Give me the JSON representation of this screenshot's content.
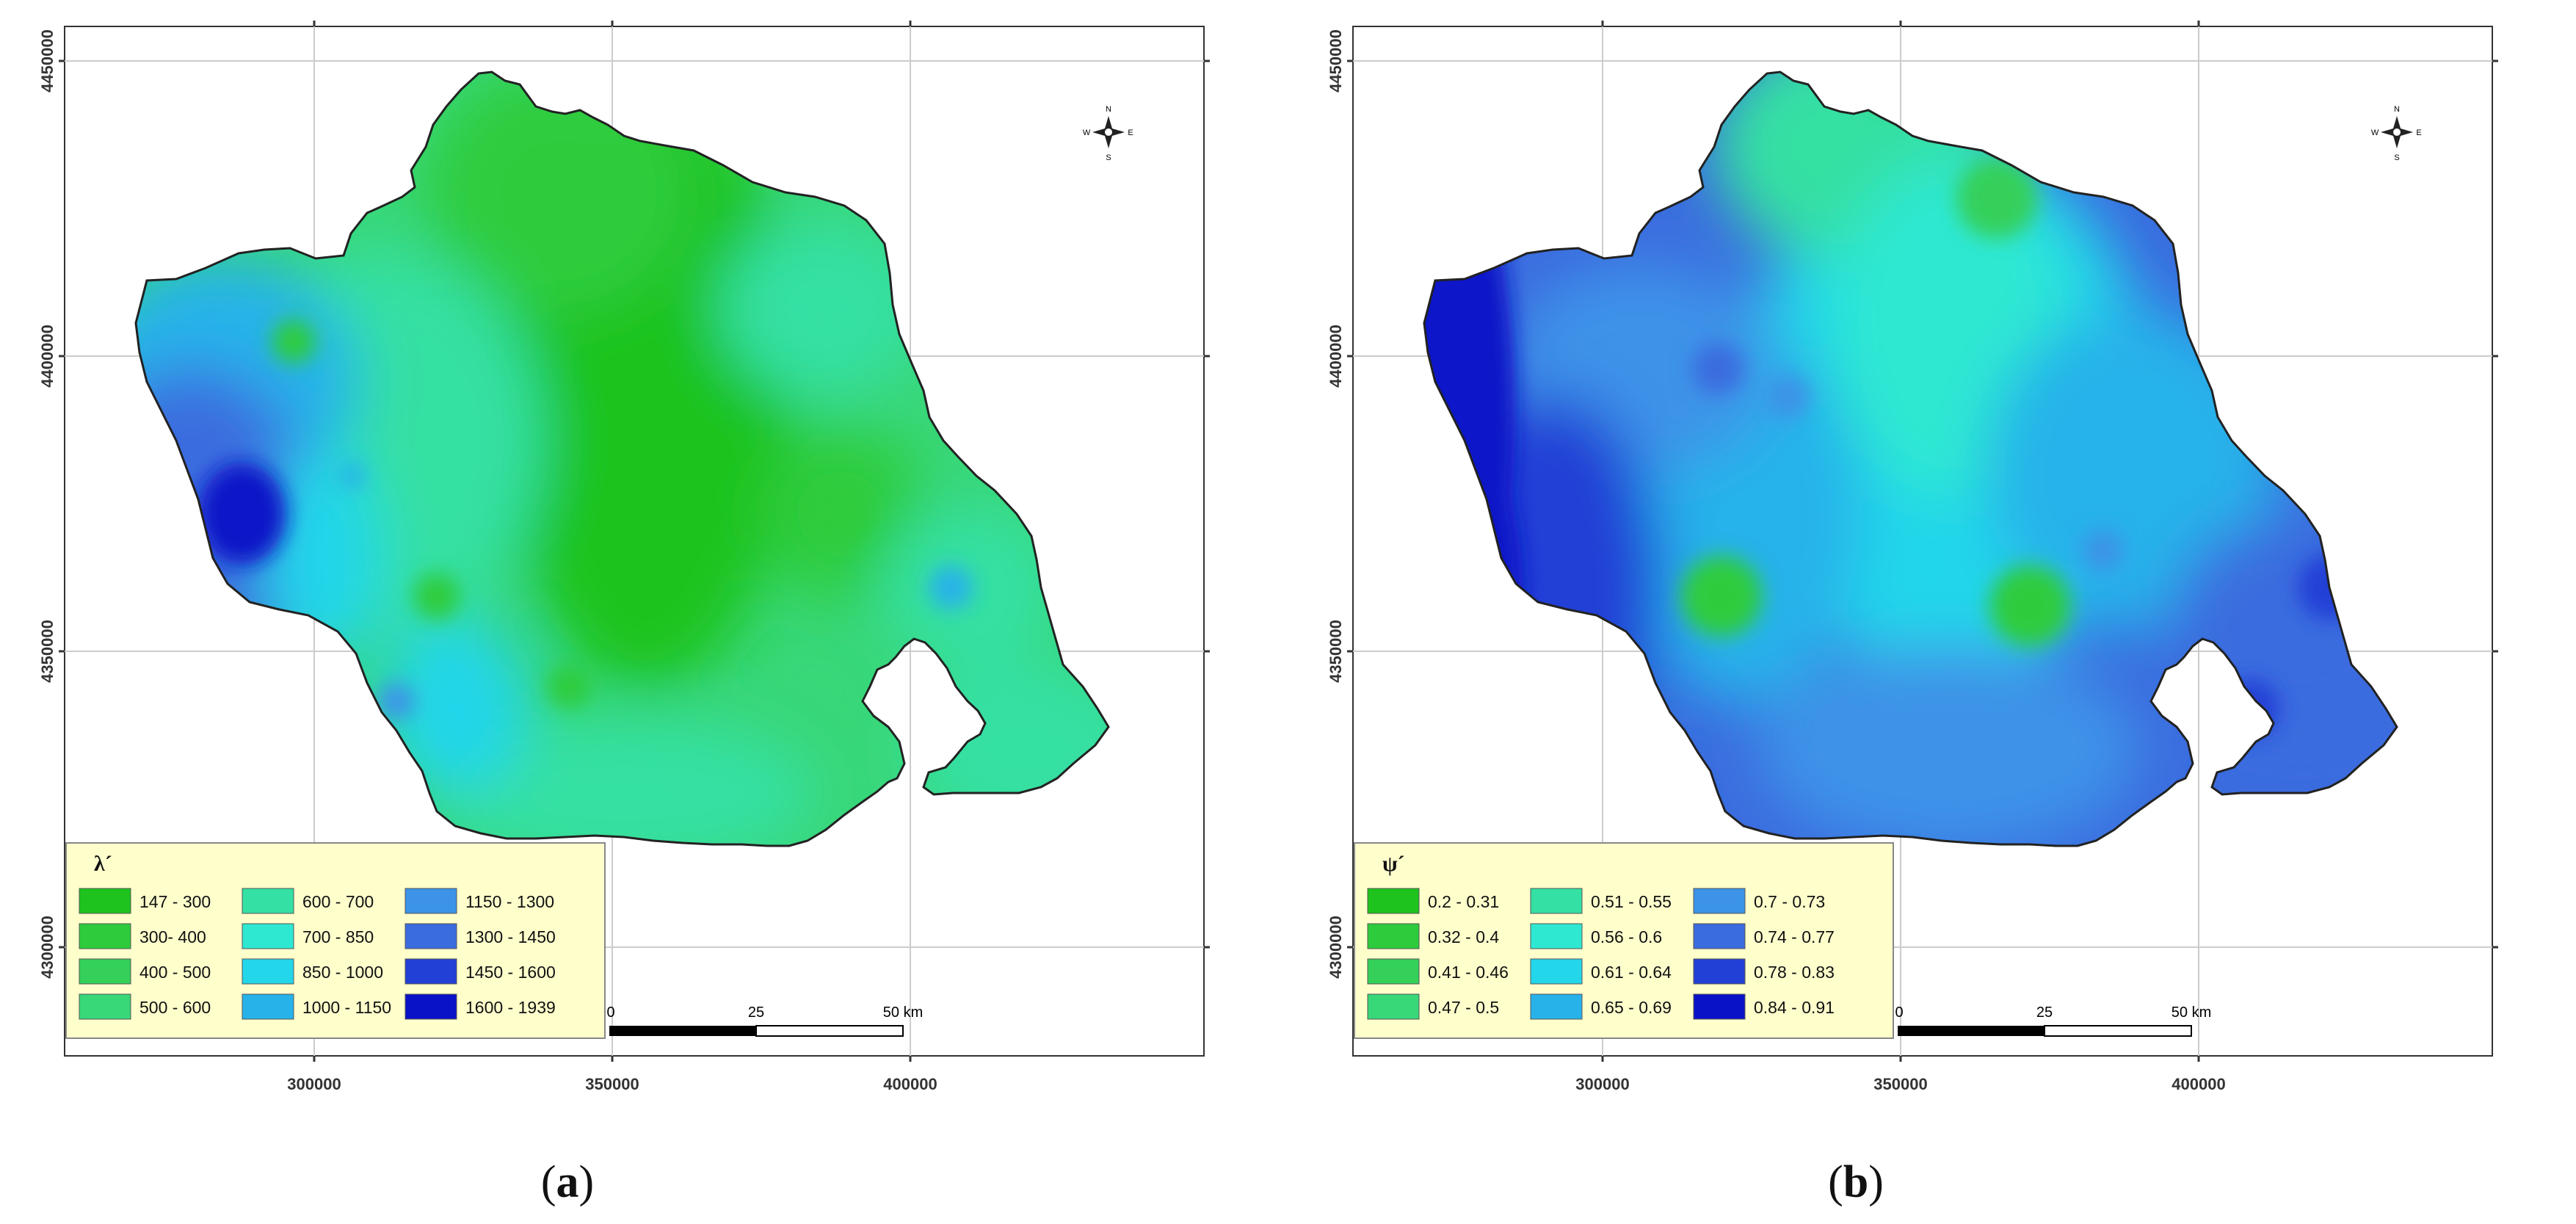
{
  "panels": [
    {
      "id": "a",
      "caption": "a",
      "legend_title": "λ´",
      "legend_items": [
        {
          "label": "147 - 300",
          "color": "#1ec31e"
        },
        {
          "label": "300- 400",
          "color": "#2dcc3c"
        },
        {
          "label": "400 - 500",
          "color": "#34d05a"
        },
        {
          "label": "500 - 600",
          "color": "#38d778"
        },
        {
          "label": "600 - 700",
          "color": "#34e0a3"
        },
        {
          "label": "700 - 850",
          "color": "#2ee8d2"
        },
        {
          "label": "850 - 1000",
          "color": "#24d6ea"
        },
        {
          "label": "1000 - 1150",
          "color": "#27b2ea"
        },
        {
          "label": "1150 - 1300",
          "color": "#3c93e8"
        },
        {
          "label": "1300 - 1450",
          "color": "#3b6cdf"
        },
        {
          "label": "1450 - 1600",
          "color": "#2340d6"
        },
        {
          "label": "1600 - 1939",
          "color": "#0a12c8"
        }
      ]
    },
    {
      "id": "b",
      "caption": "b",
      "legend_title": "ψ´",
      "legend_items": [
        {
          "label": "0.2 - 0.31",
          "color": "#1ec31e"
        },
        {
          "label": "0.32 - 0.4",
          "color": "#2dcc3c"
        },
        {
          "label": "0.41 - 0.46",
          "color": "#34d05a"
        },
        {
          "label": "0.47 - 0.5",
          "color": "#38d778"
        },
        {
          "label": "0.51 - 0.55",
          "color": "#34e0a3"
        },
        {
          "label": "0.56 - 0.6",
          "color": "#2ee8d2"
        },
        {
          "label": "0.61 - 0.64",
          "color": "#24d6ea"
        },
        {
          "label": "0.65 - 0.69",
          "color": "#27b2ea"
        },
        {
          "label": "0.7 - 0.73",
          "color": "#3c93e8"
        },
        {
          "label": "0.74 - 0.77",
          "color": "#3b6cdf"
        },
        {
          "label": "0.78 - 0.83",
          "color": "#2340d6"
        },
        {
          "label": "0.84 - 0.91",
          "color": "#0a12c8"
        }
      ]
    }
  ],
  "x_ticks": [
    "300000",
    "350000",
    "400000"
  ],
  "y_ticks": [
    "4450000",
    "4400000",
    "4350000",
    "4300000"
  ],
  "scale_bar": {
    "labels": [
      "0",
      "25",
      "50 km"
    ]
  },
  "north_arrow": {
    "n": "N",
    "s": "S",
    "e": "E",
    "w": "W"
  },
  "legend_bg": "#ffffcc",
  "outline_color": "#222222"
}
